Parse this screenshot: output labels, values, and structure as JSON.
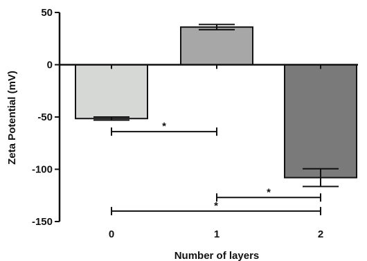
{
  "chart_data": {
    "type": "bar",
    "xlabel": "Number of layers",
    "ylabel": "Zeta Potential (mV)",
    "categories": [
      "0",
      "1",
      "2"
    ],
    "values": [
      -51.5,
      36,
      -108
    ],
    "errors": [
      1.5,
      2.5,
      8.5
    ],
    "bar_colors": [
      "#d6d8d5",
      "#a7a7a7",
      "#7a7a7a"
    ],
    "ylim": [
      -150,
      50
    ],
    "yticks": [
      50,
      0,
      -50,
      -100,
      -150
    ],
    "significance": [
      {
        "from": "0",
        "to": "1",
        "y": -64,
        "label": "*"
      },
      {
        "from": "1",
        "to": "2",
        "y": -127,
        "label": "*"
      },
      {
        "from": "0",
        "to": "2",
        "y": -140,
        "label": "*"
      }
    ]
  }
}
